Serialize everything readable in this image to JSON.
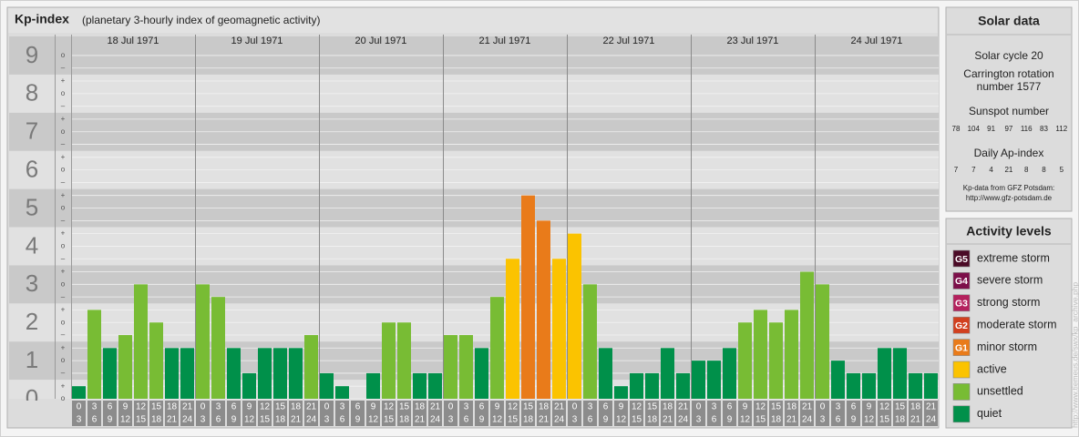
{
  "chart_data": {
    "type": "bar",
    "title": "Kp-index",
    "subtitle": "(planetary 3-hourly index of geomagnetic activity)",
    "groups": [
      "18 Jul 1971",
      "19 Jul 1971",
      "20 Jul 1971",
      "21 Jul 1971",
      "22 Jul 1971",
      "23 Jul 1971",
      "24 Jul 1971"
    ],
    "hours": [
      [
        "0",
        "3"
      ],
      [
        "3",
        "6"
      ],
      [
        "6",
        "9"
      ],
      [
        "9",
        "12"
      ],
      [
        "12",
        "15"
      ],
      [
        "15",
        "18"
      ],
      [
        "18",
        "21"
      ],
      [
        "21",
        "24"
      ]
    ],
    "values": [
      0.33,
      2.33,
      1.33,
      1.67,
      3,
      2,
      1.33,
      1.33,
      3,
      2.67,
      1.33,
      0.67,
      1.33,
      1.33,
      1.33,
      1.67,
      0.67,
      0.33,
      0,
      0.67,
      2,
      2,
      0.67,
      0.67,
      1.67,
      1.67,
      1.33,
      2.67,
      3.67,
      5.33,
      4.67,
      3.67,
      4.33,
      3,
      1.33,
      0.33,
      0.67,
      0.67,
      1.33,
      0.67,
      1,
      1,
      1.33,
      2,
      2.33,
      2,
      2.33,
      3.33,
      3,
      1,
      0.67,
      0.67,
      1.33,
      1.33,
      0.67,
      0.67
    ],
    "colors": [
      "#00904a",
      "#78bc34",
      "#00904a",
      "#78bc34",
      "#78bc34",
      "#78bc34",
      "#00904a",
      "#00904a",
      "#78bc34",
      "#78bc34",
      "#00904a",
      "#00904a",
      "#00904a",
      "#00904a",
      "#00904a",
      "#78bc34",
      "#00904a",
      "#00904a",
      "#00904a",
      "#00904a",
      "#78bc34",
      "#78bc34",
      "#00904a",
      "#00904a",
      "#78bc34",
      "#78bc34",
      "#00904a",
      "#78bc34",
      "#fbc300",
      "#e97b1a",
      "#e97b1a",
      "#fbc300",
      "#fbc300",
      "#78bc34",
      "#00904a",
      "#00904a",
      "#00904a",
      "#00904a",
      "#00904a",
      "#00904a",
      "#00904a",
      "#00904a",
      "#00904a",
      "#78bc34",
      "#78bc34",
      "#78bc34",
      "#78bc34",
      "#78bc34",
      "#78bc34",
      "#00904a",
      "#00904a",
      "#00904a",
      "#00904a",
      "#00904a",
      "#00904a",
      "#00904a"
    ],
    "ylim": [
      0,
      9.5
    ],
    "yticks": [
      0,
      1,
      2,
      3,
      4,
      5,
      6,
      7,
      8,
      9
    ],
    "minor_ticks": [
      {
        "value": 0,
        "label": "o"
      },
      {
        "value": 0.33,
        "label": "+"
      },
      {
        "value": 0.67,
        "label": "–"
      },
      {
        "value": 1,
        "label": "o"
      },
      {
        "value": 1.33,
        "label": "+"
      },
      {
        "value": 1.67,
        "label": "–"
      },
      {
        "value": 2,
        "label": "o"
      },
      {
        "value": 2.33,
        "label": "+"
      },
      {
        "value": 2.67,
        "label": "–"
      },
      {
        "value": 3,
        "label": "o"
      },
      {
        "value": 3.33,
        "label": "+"
      },
      {
        "value": 3.67,
        "label": "–"
      },
      {
        "value": 4,
        "label": "o"
      },
      {
        "value": 4.33,
        "label": "+"
      },
      {
        "value": 4.67,
        "label": "–"
      },
      {
        "value": 5,
        "label": "o"
      },
      {
        "value": 5.33,
        "label": "+"
      },
      {
        "value": 5.67,
        "label": "–"
      },
      {
        "value": 6,
        "label": "o"
      },
      {
        "value": 6.33,
        "label": "+"
      },
      {
        "value": 6.67,
        "label": "–"
      },
      {
        "value": 7,
        "label": "o"
      },
      {
        "value": 7.33,
        "label": "+"
      },
      {
        "value": 7.67,
        "label": "–"
      },
      {
        "value": 8,
        "label": "o"
      },
      {
        "value": 8.33,
        "label": "+"
      },
      {
        "value": 8.67,
        "label": "–"
      },
      {
        "value": 9,
        "label": "o"
      }
    ],
    "grid": true
  },
  "solar_data": {
    "title": "Solar data",
    "solar_cycle": "Solar cycle 20",
    "carrington": [
      "Carrington rotation",
      "number 1577"
    ],
    "sunspot_title": "Sunspot number",
    "sunspot_numbers": [
      78,
      104,
      91,
      97,
      116,
      83,
      112
    ],
    "ap_title": "Daily Ap-index",
    "ap_values": [
      7,
      7,
      4,
      21,
      8,
      8,
      5
    ],
    "source": [
      "Kp-data from GFZ Potsdam:",
      "http://www.gfz-potsdam.de"
    ]
  },
  "activity_levels": {
    "title": "Activity levels",
    "items": [
      {
        "badge": "G5",
        "name": "extreme storm",
        "color": "#4b0a26"
      },
      {
        "badge": "G4",
        "name": "severe storm",
        "color": "#7d0f4a"
      },
      {
        "badge": "G3",
        "name": "strong storm",
        "color": "#b4215d"
      },
      {
        "badge": "G2",
        "name": "moderate storm",
        "color": "#d2401f"
      },
      {
        "badge": "G1",
        "name": "minor storm",
        "color": "#e97b1a"
      },
      {
        "name": "active",
        "color": "#fbc300"
      },
      {
        "name": "unsettled",
        "color": "#78bc34"
      },
      {
        "name": "quiet",
        "color": "#00904a"
      }
    ]
  },
  "watermark": "http://www.tiemeus.de/swx/kp_archive.php"
}
